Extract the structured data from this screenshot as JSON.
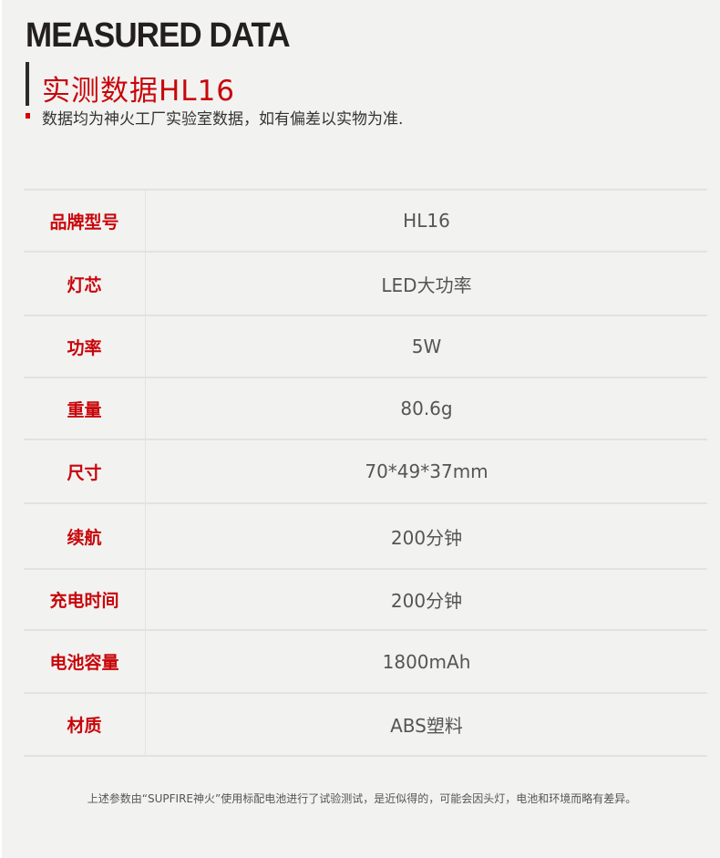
{
  "header": {
    "title": "MEASURED DATA",
    "subtitle": "实测数据HL16",
    "note": "数据均为神火工厂实验室数据，如有偏差以实物为准."
  },
  "rows": [
    {
      "label": "品牌型号",
      "value": "HL16"
    },
    {
      "label": "灯芯",
      "value": "LED大功率"
    },
    {
      "label": "功率",
      "value": "5W"
    },
    {
      "label": "重量",
      "value": "80.6g"
    },
    {
      "label": "尺寸",
      "value": "70*49*37mm"
    },
    {
      "label": "续航",
      "value": "200分钟"
    },
    {
      "label": "充电时间",
      "value": "200分钟"
    },
    {
      "label": "电池容量",
      "value": "1800mAh"
    },
    {
      "label": "材质",
      "value": "ABS塑料"
    }
  ],
  "footer": "上述参数由“SUPFIRE神火”使用标配电池进行了试验测试，是近似得的，可能会因头灯，电池和环境而略有差异。"
}
